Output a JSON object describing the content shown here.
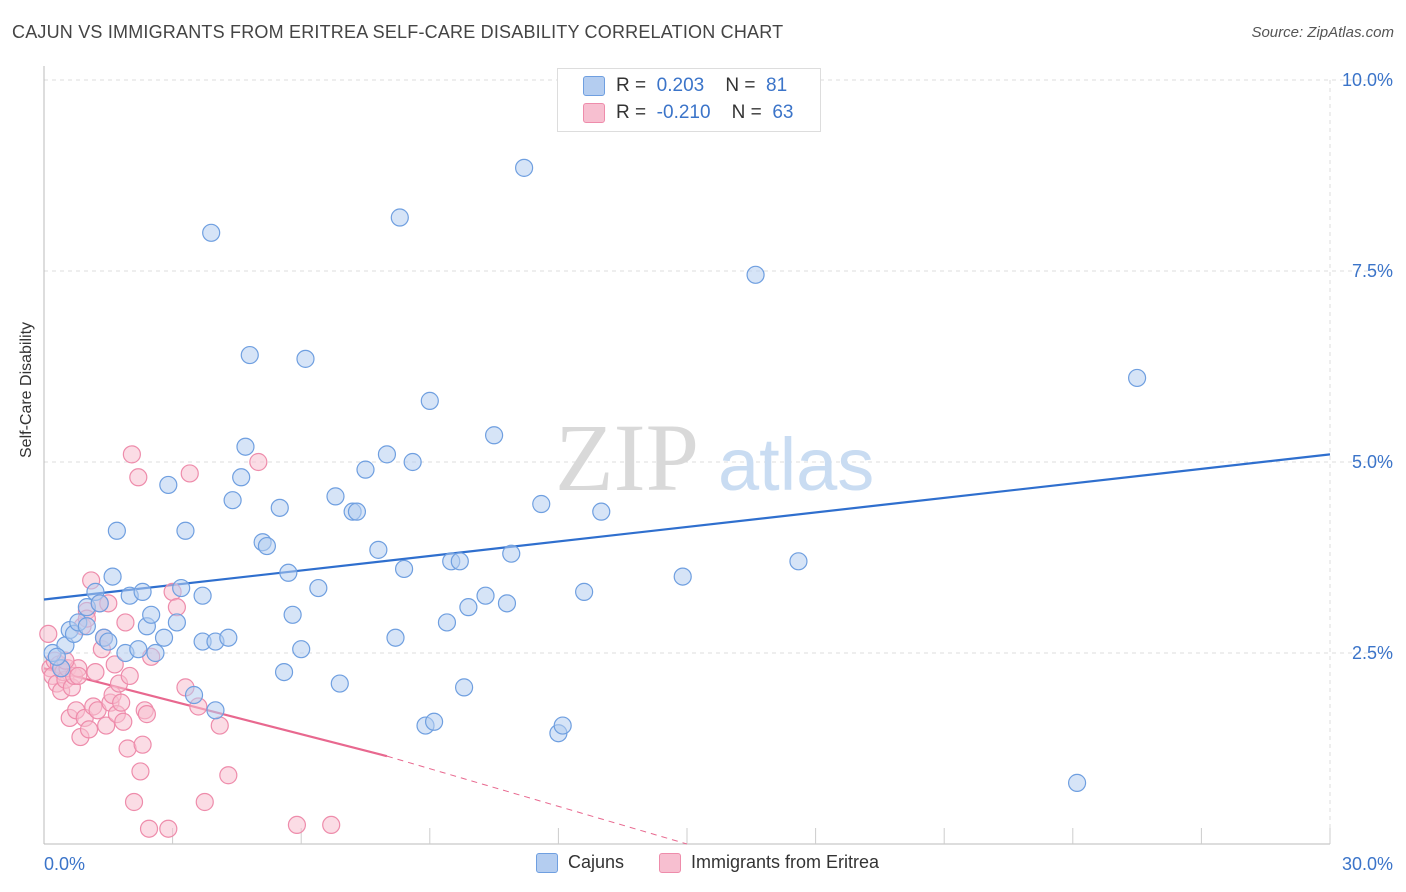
{
  "title": "CAJUN VS IMMIGRANTS FROM ERITREA SELF-CARE DISABILITY CORRELATION CHART",
  "source": "Source: ZipAtlas.com",
  "watermark": {
    "zip": "ZIP",
    "atlas": "atlas"
  },
  "legend_top": [
    {
      "r_label": "R =",
      "r_value": "0.203",
      "n_label": "N =",
      "n_value": "81"
    },
    {
      "r_label": "R =",
      "r_value": "-0.210",
      "n_label": "N =",
      "n_value": "63"
    }
  ],
  "legend_bottom": [
    {
      "label": "Cajuns"
    },
    {
      "label": "Immigrants from Eritrea"
    }
  ],
  "colors": {
    "blue_fill": "#b4cdf0",
    "blue_stroke": "#6f9fe0",
    "blue_line": "#2f6fce",
    "pink_fill": "#f7bfd0",
    "pink_stroke": "#ee8cab",
    "pink_line": "#e8688f",
    "tick_text": "#3b74c9",
    "grid": "#dddddd"
  },
  "chart_data": {
    "type": "scatter",
    "title": "CAJUN VS IMMIGRANTS FROM ERITREA SELF-CARE DISABILITY CORRELATION CHART",
    "xlabel": "",
    "ylabel": "Self-Care Disability",
    "xlim": [
      0,
      30
    ],
    "ylim": [
      0,
      10
    ],
    "x_tick_labels": [
      {
        "value": 0,
        "label": "0.0%"
      },
      {
        "value": 30,
        "label": "30.0%"
      }
    ],
    "y_tick_labels": [
      {
        "value": 2.5,
        "label": "2.5%"
      },
      {
        "value": 5.0,
        "label": "5.0%"
      },
      {
        "value": 7.5,
        "label": "7.5%"
      },
      {
        "value": 10.0,
        "label": "10.0%"
      }
    ],
    "grid": true,
    "legend_placement": "top-center",
    "series": [
      {
        "name": "Cajuns",
        "r": 0.203,
        "n": 81,
        "trend": {
          "x": [
            0,
            30
          ],
          "y": [
            3.2,
            5.1
          ]
        },
        "points": [
          [
            0.2,
            2.5
          ],
          [
            0.4,
            2.3
          ],
          [
            0.5,
            2.6
          ],
          [
            0.6,
            2.8
          ],
          [
            0.7,
            2.75
          ],
          [
            0.8,
            2.9
          ],
          [
            1.0,
            2.85
          ],
          [
            1.0,
            3.1
          ],
          [
            1.2,
            3.3
          ],
          [
            1.3,
            3.15
          ],
          [
            1.4,
            2.7
          ],
          [
            1.5,
            2.65
          ],
          [
            1.6,
            3.5
          ],
          [
            1.7,
            4.1
          ],
          [
            1.9,
            2.5
          ],
          [
            2.0,
            3.25
          ],
          [
            2.2,
            2.55
          ],
          [
            2.3,
            3.3
          ],
          [
            2.4,
            2.85
          ],
          [
            2.5,
            3.0
          ],
          [
            2.6,
            2.5
          ],
          [
            2.8,
            2.7
          ],
          [
            2.9,
            4.7
          ],
          [
            3.1,
            2.9
          ],
          [
            3.2,
            3.35
          ],
          [
            3.3,
            4.1
          ],
          [
            3.5,
            1.95
          ],
          [
            3.7,
            2.65
          ],
          [
            3.7,
            3.25
          ],
          [
            3.9,
            8.0
          ],
          [
            4.0,
            2.65
          ],
          [
            4.0,
            1.75
          ],
          [
            4.3,
            2.7
          ],
          [
            4.4,
            4.5
          ],
          [
            4.6,
            4.8
          ],
          [
            4.7,
            5.2
          ],
          [
            4.8,
            6.4
          ],
          [
            5.1,
            3.95
          ],
          [
            5.2,
            3.9
          ],
          [
            5.5,
            4.4
          ],
          [
            5.6,
            2.25
          ],
          [
            5.7,
            3.55
          ],
          [
            5.8,
            3.0
          ],
          [
            6.0,
            2.55
          ],
          [
            6.1,
            6.35
          ],
          [
            6.4,
            3.35
          ],
          [
            6.8,
            4.55
          ],
          [
            6.9,
            2.1
          ],
          [
            7.2,
            4.35
          ],
          [
            7.3,
            4.35
          ],
          [
            7.5,
            4.9
          ],
          [
            7.8,
            3.85
          ],
          [
            8.0,
            5.1
          ],
          [
            8.2,
            2.7
          ],
          [
            8.3,
            8.2
          ],
          [
            8.4,
            3.6
          ],
          [
            8.6,
            5.0
          ],
          [
            8.9,
            1.55
          ],
          [
            9.0,
            5.8
          ],
          [
            9.1,
            1.6
          ],
          [
            9.4,
            2.9
          ],
          [
            9.5,
            3.7
          ],
          [
            9.7,
            3.7
          ],
          [
            9.8,
            2.05
          ],
          [
            9.9,
            3.1
          ],
          [
            10.3,
            3.25
          ],
          [
            10.5,
            5.35
          ],
          [
            10.8,
            3.15
          ],
          [
            10.9,
            3.8
          ],
          [
            11.2,
            8.85
          ],
          [
            11.6,
            4.45
          ],
          [
            12.0,
            1.45
          ],
          [
            12.1,
            1.55
          ],
          [
            12.6,
            3.3
          ],
          [
            13.0,
            4.35
          ],
          [
            14.9,
            3.5
          ],
          [
            16.6,
            7.45
          ],
          [
            17.6,
            3.7
          ],
          [
            24.1,
            0.8
          ],
          [
            25.5,
            6.1
          ],
          [
            0.3,
            2.45
          ]
        ]
      },
      {
        "name": "Immigrants from Eritrea",
        "r": -0.21,
        "n": 63,
        "trend": {
          "x": [
            0,
            8
          ],
          "y": [
            2.3,
            1.15
          ],
          "dashed_to": {
            "x": 15,
            "y": 0.0
          }
        },
        "points": [
          [
            0.1,
            2.75
          ],
          [
            0.15,
            2.3
          ],
          [
            0.2,
            2.2
          ],
          [
            0.25,
            2.4
          ],
          [
            0.3,
            2.1
          ],
          [
            0.35,
            2.35
          ],
          [
            0.4,
            2.0
          ],
          [
            0.45,
            2.25
          ],
          [
            0.5,
            2.15
          ],
          [
            0.55,
            2.3
          ],
          [
            0.6,
            1.65
          ],
          [
            0.65,
            2.05
          ],
          [
            0.7,
            2.2
          ],
          [
            0.75,
            1.75
          ],
          [
            0.8,
            2.3
          ],
          [
            0.85,
            1.4
          ],
          [
            0.9,
            2.85
          ],
          [
            0.95,
            1.65
          ],
          [
            1.0,
            3.05
          ],
          [
            1.05,
            1.5
          ],
          [
            1.1,
            3.45
          ],
          [
            1.15,
            1.8
          ],
          [
            1.2,
            2.25
          ],
          [
            1.25,
            1.75
          ],
          [
            1.3,
            3.15
          ],
          [
            1.35,
            2.55
          ],
          [
            1.4,
            2.7
          ],
          [
            1.45,
            1.55
          ],
          [
            1.5,
            3.15
          ],
          [
            1.55,
            1.85
          ],
          [
            1.6,
            1.95
          ],
          [
            1.65,
            2.35
          ],
          [
            1.7,
            1.7
          ],
          [
            1.75,
            2.1
          ],
          [
            1.8,
            1.85
          ],
          [
            1.85,
            1.6
          ],
          [
            1.9,
            2.9
          ],
          [
            1.95,
            1.25
          ],
          [
            2.0,
            2.2
          ],
          [
            2.05,
            5.1
          ],
          [
            2.1,
            0.55
          ],
          [
            2.2,
            4.8
          ],
          [
            2.25,
            0.95
          ],
          [
            2.3,
            1.3
          ],
          [
            2.35,
            1.75
          ],
          [
            2.4,
            1.7
          ],
          [
            2.45,
            0.2
          ],
          [
            2.5,
            2.45
          ],
          [
            2.9,
            0.2
          ],
          [
            3.0,
            3.3
          ],
          [
            3.3,
            2.05
          ],
          [
            3.4,
            4.85
          ],
          [
            3.6,
            1.8
          ],
          [
            3.75,
            0.55
          ],
          [
            4.1,
            1.55
          ],
          [
            4.3,
            0.9
          ],
          [
            5.0,
            5.0
          ],
          [
            5.9,
            0.25
          ],
          [
            6.7,
            0.25
          ],
          [
            3.1,
            3.1
          ],
          [
            1.0,
            2.95
          ],
          [
            0.5,
            2.4
          ],
          [
            0.8,
            2.2
          ]
        ]
      }
    ]
  }
}
